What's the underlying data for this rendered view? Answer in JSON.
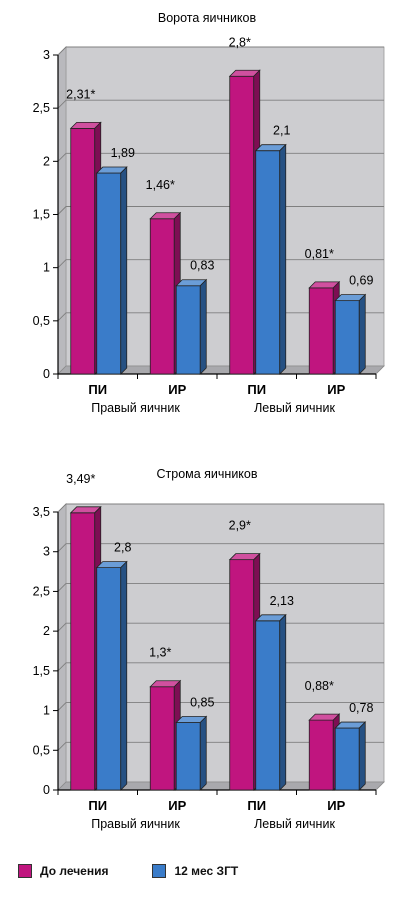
{
  "colors": {
    "series1": "#c0157f",
    "series2": "#3a7cc9",
    "plot_bg": "#cdcdd0",
    "grid": "#7f7f7f"
  },
  "legend": {
    "series1_label": "До лечения",
    "series2_label": "12 мес ЗГТ"
  },
  "chart_data": [
    {
      "type": "bar",
      "title": "Ворота яичников",
      "categories": [
        "ПИ",
        "ИР",
        "ПИ",
        "ИР"
      ],
      "groups": [
        "Правый яичник",
        "Левый яичник"
      ],
      "series": [
        {
          "name": "До лечения",
          "values": [
            2.31,
            1.46,
            2.8,
            0.81
          ],
          "labels": [
            "2,31*",
            "1,46*",
            "2,8*",
            "0,81*"
          ]
        },
        {
          "name": "12 мес ЗГТ",
          "values": [
            1.89,
            0.83,
            2.1,
            0.69
          ],
          "labels": [
            "1,89",
            "0,83",
            "2,1",
            "0,69"
          ]
        }
      ],
      "ylim": [
        0,
        3
      ],
      "yticks": [
        "0",
        "0,5",
        "1",
        "1,5",
        "2",
        "2,5",
        "3"
      ],
      "grid": true
    },
    {
      "type": "bar",
      "title": "Строма яичников",
      "categories": [
        "ПИ",
        "ИР",
        "ПИ",
        "ИР"
      ],
      "groups": [
        "Правый яичник",
        "Левый яичник"
      ],
      "series": [
        {
          "name": "До лечения",
          "values": [
            3.49,
            1.3,
            2.9,
            0.88
          ],
          "labels": [
            "3,49*",
            "1,3*",
            "2,9*",
            "0,88*"
          ]
        },
        {
          "name": "12 мес ЗГТ",
          "values": [
            2.8,
            0.85,
            2.13,
            0.78
          ],
          "labels": [
            "2,8",
            "0,85",
            "2,13",
            "0,78"
          ]
        }
      ],
      "ylim": [
        0,
        3.5
      ],
      "yticks": [
        "0",
        "0,5",
        "1",
        "1,5",
        "2",
        "2,5",
        "3",
        "3,5"
      ],
      "grid": true
    }
  ]
}
